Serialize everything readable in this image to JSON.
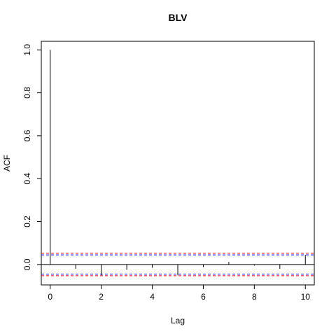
{
  "chart_data": {
    "type": "bar",
    "title": "BLV",
    "xlabel": "Lag",
    "ylabel": "ACF",
    "xlim": [
      -0.35,
      10.35
    ],
    "ylim": [
      -0.095,
      1.04
    ],
    "x_ticks": [
      0,
      2,
      4,
      6,
      8,
      10
    ],
    "x_tick_labels": [
      "0",
      "2",
      "4",
      "6",
      "8",
      "10"
    ],
    "y_ticks": [
      0.0,
      0.2,
      0.4,
      0.6,
      0.8,
      1.0
    ],
    "y_tick_labels": [
      "0.0",
      "0.2",
      "0.4",
      "0.6",
      "0.8",
      "1.0"
    ],
    "grid": false,
    "x": [
      0,
      1,
      2,
      3,
      4,
      5,
      6,
      7,
      8,
      9,
      10
    ],
    "values": [
      1.0,
      -0.02,
      -0.05,
      -0.025,
      -0.015,
      -0.05,
      -0.012,
      0.012,
      -0.005,
      -0.02,
      0.045
    ],
    "confidence_bands": [
      {
        "upper": 0.052,
        "lower": -0.052,
        "color": "#ff0000"
      },
      {
        "upper": 0.045,
        "lower": -0.045,
        "color": "#0000ff"
      }
    ],
    "colors": {
      "bars": "#000000",
      "band_red": "#ff0000",
      "band_blue": "#0000ff"
    }
  }
}
